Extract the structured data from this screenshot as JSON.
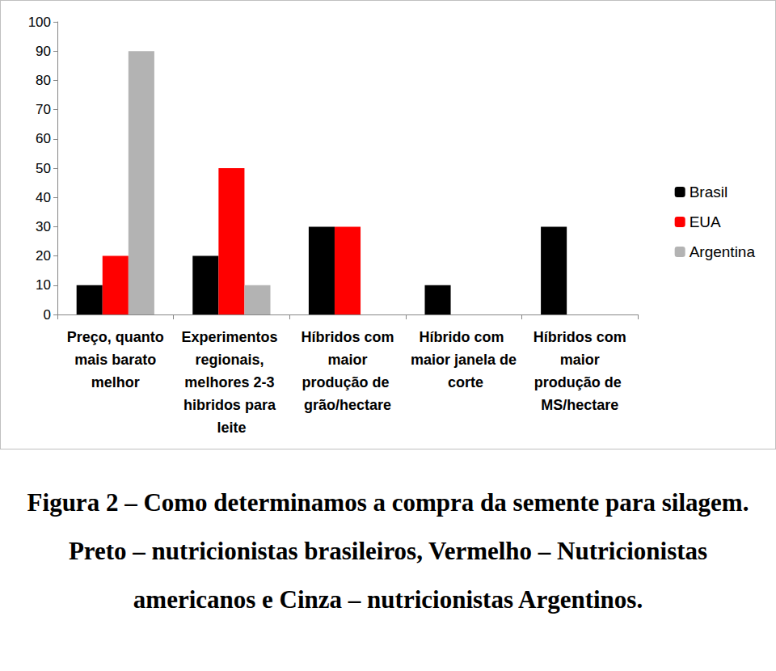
{
  "chart_data": {
    "type": "bar",
    "caption": "Figura 2 – Como determinamos a compra da semente para silagem. Preto – nutricionistas brasileiros, Vermelho – Nutricionistas americanos e Cinza – nutricionistas Argentinos.",
    "categories": [
      "Preço, quanto mais barato melhor",
      "Experimentos regionais, melhores 2-3 hibridos para leite",
      "Híbridos com maior produção de grão/hectare",
      "Híbrido com maior janela de corte",
      "Híbridos com maior produção de MS/hectare"
    ],
    "series": [
      {
        "name": "Brasil",
        "color": "#000000",
        "values": [
          10,
          20,
          30,
          10,
          30
        ]
      },
      {
        "name": "EUA",
        "color": "#ff0000",
        "values": [
          20,
          50,
          30,
          0,
          0
        ]
      },
      {
        "name": "Argentina",
        "color": "#b3b3b3",
        "values": [
          90,
          10,
          0,
          0,
          0
        ]
      }
    ],
    "ylim": [
      0,
      100
    ],
    "yticks": [
      0,
      10,
      20,
      30,
      40,
      50,
      60,
      70,
      80,
      90,
      100
    ],
    "grid": false,
    "legend": "right"
  }
}
